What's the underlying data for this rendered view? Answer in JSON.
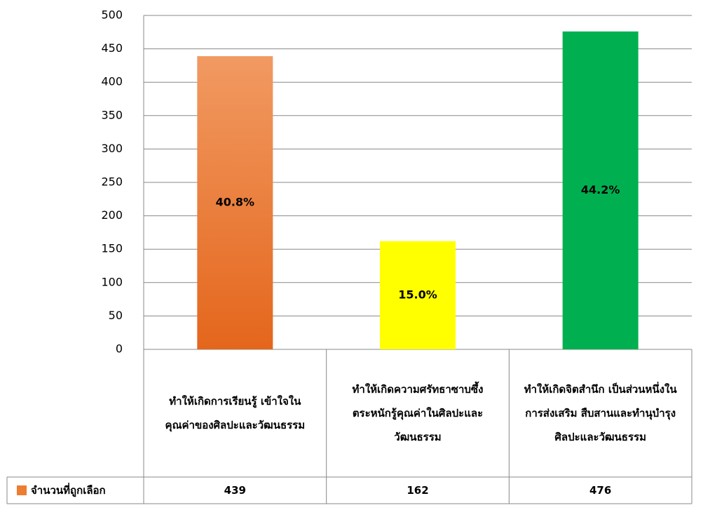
{
  "chart_data": {
    "type": "bar",
    "categories": [
      "ทำให้เกิดการเรียนรู้ เข้าใจในคุณค่าของศิลปะและวัฒนธรรม",
      "ทำให้เกิดความศรัทธาซาบซึ้ง ตระหนักรู้คุณค่าในศิลปะและวัฒนธรรม",
      "ทำให้เกิดจิตสำนึก เป็นส่วนหนึ่งในการส่งเสริม สืบสานและทำนุบำรุงศิลปะและวัฒนธรรม"
    ],
    "series": [
      {
        "name": "จำนวนที่ถูกเลือก",
        "color": "#ed7d31",
        "colors": [
          "#ed7d31",
          "#ffff00",
          "#00b050"
        ],
        "values": [
          439,
          162,
          476
        ],
        "data_labels": [
          {
            "value": 40.8,
            "label": "40.8%"
          },
          {
            "value": 15.0,
            "label": "15.0%"
          },
          {
            "value": 44.2,
            "label": "44.2%"
          }
        ]
      }
    ],
    "ylim": [
      0,
      500
    ],
    "yticks": [
      0,
      50,
      100,
      150,
      200,
      250,
      300,
      350,
      400,
      450,
      500
    ],
    "grid": true,
    "data_table": true
  }
}
